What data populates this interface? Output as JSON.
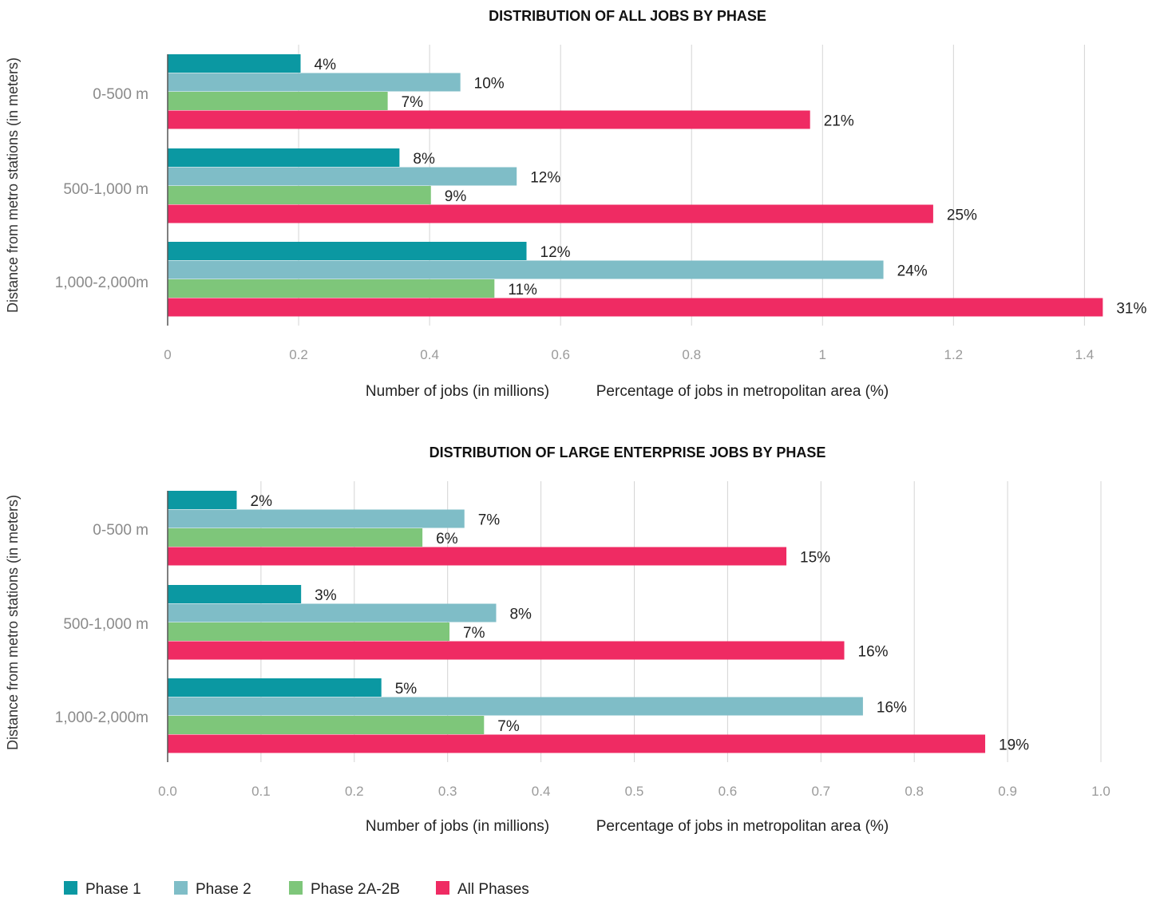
{
  "legend": [
    {
      "label": "Phase 1",
      "color": "#0b98a2"
    },
    {
      "label": "Phase 2",
      "color": "#7fbdc7"
    },
    {
      "label": "Phase 2A-2B",
      "color": "#7ec67a"
    },
    {
      "label": "All Phases",
      "color": "#ef2b63"
    }
  ],
  "chart_data": [
    {
      "type": "bar",
      "orientation": "horizontal",
      "title": "DISTRIBUTION OF ALL JOBS BY PHASE",
      "ylabel": "Distance from metro stations (in meters)",
      "xlabel_left": "Number of jobs (in millions)",
      "xlabel_right": "Percentage of jobs in metropolitan area (%)",
      "categories": [
        "0-500 m",
        "500-1,000 m",
        "1,000-2,000m"
      ],
      "xlim": [
        0,
        1.43
      ],
      "xticks": [
        0,
        0.2,
        0.4,
        0.6,
        0.8,
        1,
        1.2,
        1.4
      ],
      "xtick_labels": [
        "0",
        "0.2",
        "0.4",
        "0.6",
        "0.8",
        "1",
        "1.2",
        "1.4"
      ],
      "grid": true,
      "series": [
        {
          "name": "Phase 1",
          "values": [
            0.203,
            0.354,
            0.548
          ],
          "labels": [
            "4%",
            "8%",
            "12%"
          ]
        },
        {
          "name": "Phase 2",
          "values": [
            0.447,
            0.533,
            1.093
          ],
          "labels": [
            "10%",
            "12%",
            "24%"
          ]
        },
        {
          "name": "Phase 2A-2B",
          "values": [
            0.336,
            0.402,
            0.499
          ],
          "labels": [
            "7%",
            "9%",
            "11%"
          ]
        },
        {
          "name": "All Phases",
          "values": [
            0.981,
            1.169,
            1.428
          ],
          "labels": [
            "21%",
            "25%",
            "31%"
          ]
        }
      ]
    },
    {
      "type": "bar",
      "orientation": "horizontal",
      "title": "DISTRIBUTION OF LARGE ENTERPRISE JOBS BY PHASE",
      "ylabel": "Distance from metro stations (in meters)",
      "xlabel_left": "Number of jobs (in millions)",
      "xlabel_right": "Percentage of jobs in metropolitan area (%)",
      "categories": [
        "0-500 m",
        "500-1,000 m",
        "1,000-2,000m"
      ],
      "xlim": [
        0,
        1.0
      ],
      "xticks": [
        0,
        0.1,
        0.2,
        0.3,
        0.4,
        0.5,
        0.6,
        0.7,
        0.8,
        0.9,
        1.0
      ],
      "xtick_labels": [
        "0.0",
        "0.1",
        "0.2",
        "0.3",
        "0.4",
        "0.5",
        "0.6",
        "0.7",
        "0.8",
        "0.9",
        "1.0"
      ],
      "grid": true,
      "series": [
        {
          "name": "Phase 1",
          "values": [
            0.074,
            0.143,
            0.229
          ],
          "labels": [
            "2%",
            "3%",
            "5%"
          ]
        },
        {
          "name": "Phase 2",
          "values": [
            0.318,
            0.352,
            0.745
          ],
          "labels": [
            "7%",
            "8%",
            "16%"
          ]
        },
        {
          "name": "Phase 2A-2B",
          "values": [
            0.273,
            0.302,
            0.339
          ],
          "labels": [
            "6%",
            "7%",
            "7%"
          ]
        },
        {
          "name": "All Phases",
          "values": [
            0.663,
            0.725,
            0.876
          ],
          "labels": [
            "15%",
            "16%",
            "19%"
          ]
        }
      ]
    }
  ]
}
